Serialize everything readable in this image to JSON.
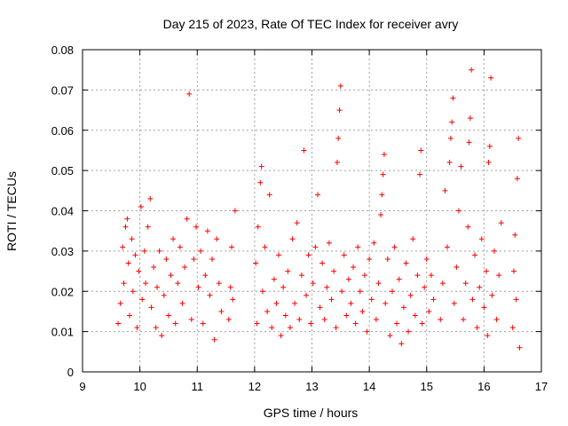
{
  "chart_data": {
    "type": "scatter",
    "title": "Day 215 of 2023, Rate Of TEC Index for receiver avry",
    "xlabel": "GPS time / hours",
    "ylabel": "ROTI / TECUs",
    "xlim": [
      9,
      17
    ],
    "ylim": [
      0,
      0.08
    ],
    "xticks": [
      9,
      10,
      11,
      12,
      13,
      14,
      15,
      16,
      17
    ],
    "yticks": [
      0,
      0.01,
      0.02,
      0.03,
      0.04,
      0.05,
      0.06,
      0.07,
      0.08
    ],
    "xtick_labels": [
      "9",
      "10",
      "11",
      "12",
      "13",
      "14",
      "15",
      "16",
      "17"
    ],
    "ytick_labels": [
      "0",
      "0.01",
      "0.02",
      "0.03",
      "0.04",
      "0.05",
      "0.06",
      "0.07",
      "0.08"
    ],
    "grid": true,
    "marker": "+",
    "series": [
      {
        "name": "ROTI",
        "color": "#ff0000",
        "points": [
          [
            9.62,
            0.012
          ],
          [
            9.66,
            0.017
          ],
          [
            9.7,
            0.031
          ],
          [
            9.72,
            0.022
          ],
          [
            9.75,
            0.036
          ],
          [
            9.78,
            0.038
          ],
          [
            9.8,
            0.027
          ],
          [
            9.82,
            0.014
          ],
          [
            9.86,
            0.033
          ],
          [
            9.88,
            0.02
          ],
          [
            9.92,
            0.029
          ],
          [
            9.95,
            0.011
          ],
          [
            9.98,
            0.025
          ],
          [
            10.02,
            0.041
          ],
          [
            10.04,
            0.018
          ],
          [
            10.08,
            0.03
          ],
          [
            10.1,
            0.022
          ],
          [
            10.14,
            0.036
          ],
          [
            10.18,
            0.043
          ],
          [
            10.2,
            0.016
          ],
          [
            10.24,
            0.026
          ],
          [
            10.28,
            0.011
          ],
          [
            10.3,
            0.021
          ],
          [
            10.34,
            0.03
          ],
          [
            10.38,
            0.009
          ],
          [
            10.42,
            0.019
          ],
          [
            10.46,
            0.028
          ],
          [
            10.5,
            0.014
          ],
          [
            10.54,
            0.024
          ],
          [
            10.58,
            0.033
          ],
          [
            10.62,
            0.012
          ],
          [
            10.66,
            0.022
          ],
          [
            10.7,
            0.031
          ],
          [
            10.74,
            0.017
          ],
          [
            10.78,
            0.026
          ],
          [
            10.82,
            0.038
          ],
          [
            10.86,
            0.069
          ],
          [
            10.9,
            0.013
          ],
          [
            10.94,
            0.028
          ],
          [
            10.98,
            0.036
          ],
          [
            11.02,
            0.021
          ],
          [
            11.06,
            0.03
          ],
          [
            11.1,
            0.012
          ],
          [
            11.14,
            0.024
          ],
          [
            11.18,
            0.035
          ],
          [
            11.22,
            0.019
          ],
          [
            11.26,
            0.028
          ],
          [
            11.3,
            0.008
          ],
          [
            11.34,
            0.033
          ],
          [
            11.38,
            0.022
          ],
          [
            11.42,
            0.015
          ],
          [
            11.55,
            0.013
          ],
          [
            11.58,
            0.021
          ],
          [
            11.6,
            0.031
          ],
          [
            11.62,
            0.018
          ],
          [
            11.66,
            0.04
          ],
          [
            12.02,
            0.027
          ],
          [
            12.04,
            0.012
          ],
          [
            12.06,
            0.036
          ],
          [
            12.1,
            0.047
          ],
          [
            12.12,
            0.051
          ],
          [
            12.14,
            0.02
          ],
          [
            12.18,
            0.031
          ],
          [
            12.22,
            0.015
          ],
          [
            12.26,
            0.044
          ],
          [
            12.3,
            0.011
          ],
          [
            12.34,
            0.023
          ],
          [
            12.38,
            0.017
          ],
          [
            12.42,
            0.029
          ],
          [
            12.46,
            0.009
          ],
          [
            12.5,
            0.021
          ],
          [
            12.54,
            0.014
          ],
          [
            12.58,
            0.025
          ],
          [
            12.62,
            0.011
          ],
          [
            12.66,
            0.033
          ],
          [
            12.7,
            0.017
          ],
          [
            12.74,
            0.037
          ],
          [
            12.78,
            0.013
          ],
          [
            12.82,
            0.024
          ],
          [
            12.86,
            0.055
          ],
          [
            12.9,
            0.019
          ],
          [
            12.94,
            0.029
          ],
          [
            12.98,
            0.012
          ],
          [
            13.02,
            0.022
          ],
          [
            13.06,
            0.031
          ],
          [
            13.1,
            0.044
          ],
          [
            13.14,
            0.016
          ],
          [
            13.18,
            0.027
          ],
          [
            13.22,
            0.013
          ],
          [
            13.26,
            0.021
          ],
          [
            13.3,
            0.032
          ],
          [
            13.34,
            0.018
          ],
          [
            13.38,
            0.025
          ],
          [
            13.42,
            0.011
          ],
          [
            13.44,
            0.052
          ],
          [
            13.46,
            0.058
          ],
          [
            13.48,
            0.065
          ],
          [
            13.5,
            0.071
          ],
          [
            13.52,
            0.02
          ],
          [
            13.56,
            0.029
          ],
          [
            13.6,
            0.014
          ],
          [
            13.64,
            0.023
          ],
          [
            13.68,
            0.017
          ],
          [
            13.72,
            0.026
          ],
          [
            13.76,
            0.012
          ],
          [
            13.8,
            0.031
          ],
          [
            13.84,
            0.02
          ],
          [
            13.88,
            0.015
          ],
          [
            13.92,
            0.024
          ],
          [
            13.96,
            0.01
          ],
          [
            14.0,
            0.028
          ],
          [
            14.04,
            0.018
          ],
          [
            14.08,
            0.032
          ],
          [
            14.12,
            0.013
          ],
          [
            14.16,
            0.022
          ],
          [
            14.2,
            0.039
          ],
          [
            14.22,
            0.044
          ],
          [
            14.24,
            0.049
          ],
          [
            14.26,
            0.054
          ],
          [
            14.28,
            0.017
          ],
          [
            14.32,
            0.028
          ],
          [
            14.36,
            0.009
          ],
          [
            14.4,
            0.02
          ],
          [
            14.44,
            0.031
          ],
          [
            14.48,
            0.012
          ],
          [
            14.52,
            0.023
          ],
          [
            14.56,
            0.007
          ],
          [
            14.6,
            0.016
          ],
          [
            14.64,
            0.027
          ],
          [
            14.68,
            0.01
          ],
          [
            14.72,
            0.019
          ],
          [
            14.76,
            0.033
          ],
          [
            14.8,
            0.014
          ],
          [
            14.84,
            0.024
          ],
          [
            14.88,
            0.049
          ],
          [
            14.9,
            0.055
          ],
          [
            14.92,
            0.012
          ],
          [
            14.96,
            0.021
          ],
          [
            15.0,
            0.028
          ],
          [
            15.04,
            0.015
          ],
          [
            15.08,
            0.024
          ],
          [
            15.12,
            0.018
          ],
          [
            15.24,
            0.013
          ],
          [
            15.28,
            0.022
          ],
          [
            15.32,
            0.045
          ],
          [
            15.36,
            0.031
          ],
          [
            15.4,
            0.052
          ],
          [
            15.42,
            0.058
          ],
          [
            15.44,
            0.062
          ],
          [
            15.46,
            0.068
          ],
          [
            15.48,
            0.017
          ],
          [
            15.52,
            0.026
          ],
          [
            15.56,
            0.04
          ],
          [
            15.6,
            0.051
          ],
          [
            15.64,
            0.013
          ],
          [
            15.68,
            0.022
          ],
          [
            15.72,
            0.036
          ],
          [
            15.74,
            0.057
          ],
          [
            15.76,
            0.063
          ],
          [
            15.78,
            0.075
          ],
          [
            15.8,
            0.018
          ],
          [
            15.84,
            0.029
          ],
          [
            15.88,
            0.011
          ],
          [
            15.92,
            0.021
          ],
          [
            15.96,
            0.033
          ],
          [
            16.0,
            0.016
          ],
          [
            16.04,
            0.025
          ],
          [
            16.06,
            0.009
          ],
          [
            16.08,
            0.052
          ],
          [
            16.1,
            0.056
          ],
          [
            16.12,
            0.073
          ],
          [
            16.14,
            0.019
          ],
          [
            16.18,
            0.03
          ],
          [
            16.22,
            0.013
          ],
          [
            16.26,
            0.024
          ],
          [
            16.3,
            0.037
          ],
          [
            16.5,
            0.011
          ],
          [
            16.52,
            0.025
          ],
          [
            16.54,
            0.034
          ],
          [
            16.56,
            0.018
          ],
          [
            16.58,
            0.048
          ],
          [
            16.6,
            0.058
          ],
          [
            16.62,
            0.006
          ]
        ]
      }
    ]
  }
}
